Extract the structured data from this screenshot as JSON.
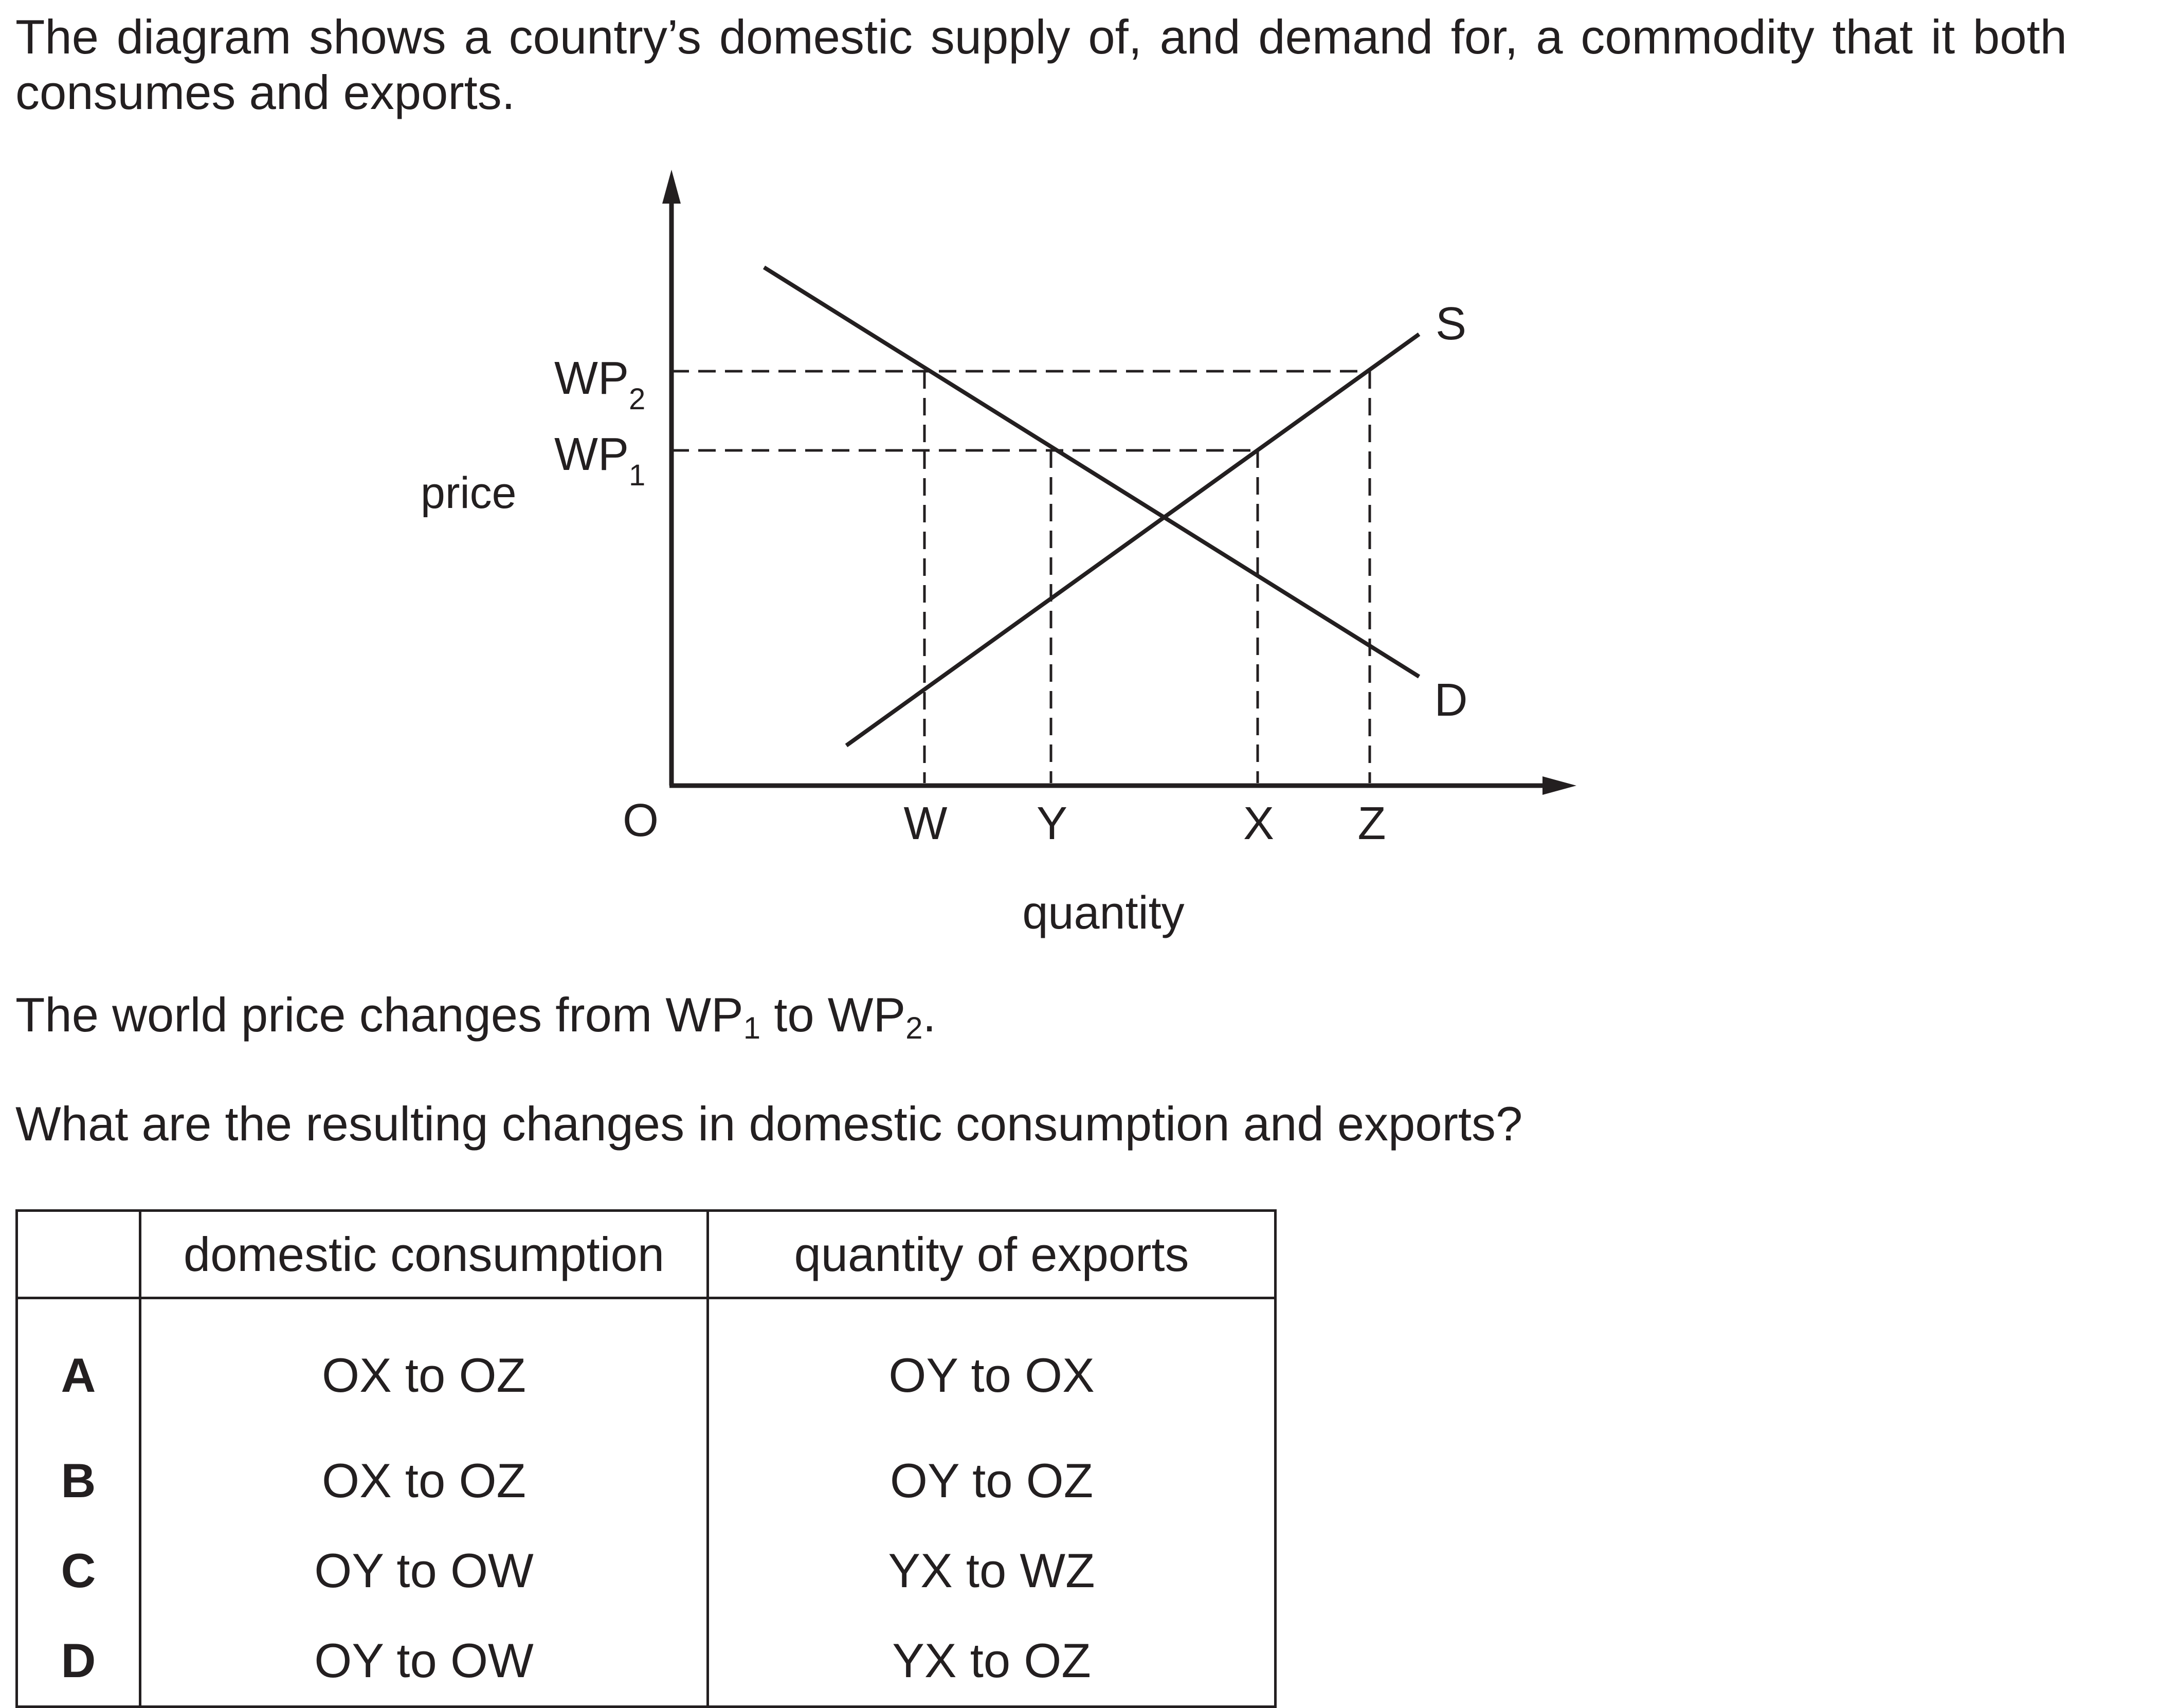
{
  "intro": "The diagram shows a country’s domestic supply of, and demand for, a commodity that it both consumes and exports.",
  "diagram": {
    "y_axis_label": "price",
    "x_axis_label": "quantity",
    "origin_label": "O",
    "price_labels": [
      {
        "base": "WP",
        "sub": "2"
      },
      {
        "base": "WP",
        "sub": "1"
      }
    ],
    "quantity_labels": [
      "W",
      "Y",
      "X",
      "Z"
    ],
    "supply_label": "S",
    "demand_label": "D"
  },
  "question": {
    "line1_prefix": "The world price changes from WP",
    "line1_sub1": "1",
    "line1_mid": " to WP",
    "line1_sub2": "2",
    "line1_suffix": ".",
    "line2": "What are the resulting changes in domestic consumption and exports?"
  },
  "options_table": {
    "headers": [
      "",
      "domestic consumption",
      "quantity of exports"
    ],
    "rows": [
      {
        "letter": "A",
        "consumption": "OX to OZ",
        "exports": "OY to OX"
      },
      {
        "letter": "B",
        "consumption": "OX to OZ",
        "exports": "OY to OZ"
      },
      {
        "letter": "C",
        "consumption": "OY to OW",
        "exports": "YX to WZ"
      },
      {
        "letter": "D",
        "consumption": "OY to OW",
        "exports": "YX to OZ"
      }
    ]
  }
}
